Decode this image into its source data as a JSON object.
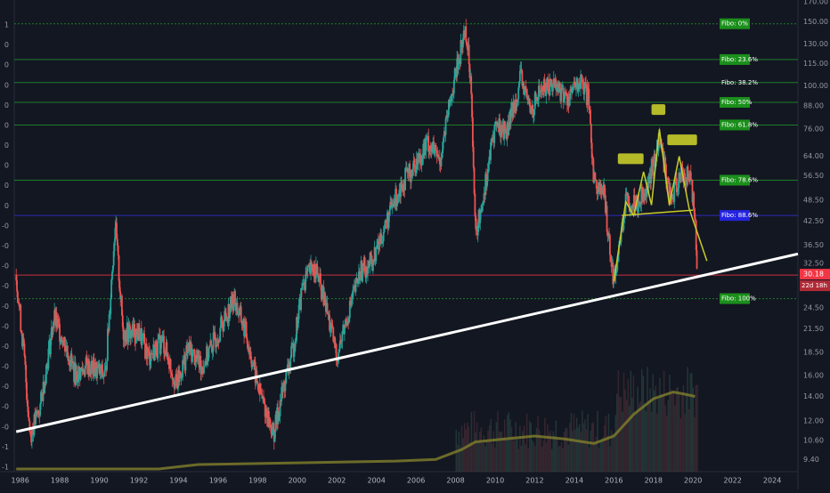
{
  "chart_data": {
    "type": "candlestick",
    "title": "",
    "x_axis": {
      "range": [
        1985.7,
        2025.3
      ],
      "ticks": [
        "1986",
        "1988",
        "1990",
        "1992",
        "1994",
        "1996",
        "1998",
        "2000",
        "2002",
        "2004",
        "2006",
        "2008",
        "2010",
        "2012",
        "2014",
        "2016",
        "2018",
        "2020",
        "2022",
        "2024"
      ]
    },
    "y_axis": {
      "scale": "log",
      "range": [
        8.7,
        172
      ],
      "ticks": [
        "170.00",
        "150.00",
        "130.00",
        "115.00",
        "100.00",
        "88.00",
        "76.00",
        "64.00",
        "56.50",
        "48.50",
        "42.50",
        "36.50",
        "32.50",
        "28.50",
        "24.50",
        "21.50",
        "18.50",
        "16.00",
        "14.00",
        "12.00",
        "10.60",
        "9.40"
      ]
    },
    "left_axis_ticks": [
      "1",
      "0",
      "0",
      "0",
      "0",
      "0",
      "0",
      "0",
      "0",
      "0",
      "-0",
      "-0",
      "-0",
      "-0",
      "-0",
      "-0",
      "-0",
      "-0",
      "-0",
      "-0",
      "-0",
      "-1",
      "-1"
    ],
    "colors": {
      "up": "#26a69a",
      "down": "#ef5350",
      "fib_line": "#2eaa3a",
      "fib_label_bg": "#1b8f1b",
      "fib_886_bg": "#2424e0",
      "pattern": "#c8cc2a",
      "trendline": "#ffffff",
      "current_price": "#f23645",
      "volume_ma": "#7b7a2a"
    },
    "fib_levels": [
      {
        "label": "Fibo:    0%",
        "price": 148,
        "style": "green"
      },
      {
        "label": "Fibo:  23.6%",
        "price": 118,
        "style": "green"
      },
      {
        "label": "Fibo:  38.2%",
        "price": 102,
        "style": "plain"
      },
      {
        "label": "Fibo:    50%",
        "price": 90,
        "style": "green"
      },
      {
        "label": "Fibo:  61.8%",
        "price": 78,
        "style": "green"
      },
      {
        "label": "Fibo:  78.6%",
        "price": 55,
        "style": "green"
      },
      {
        "label": "Fibo:  88.6%",
        "price": 44,
        "style": "blue"
      },
      {
        "label": "Fibo:  100%",
        "price": 26,
        "style": "green"
      }
    ],
    "price_anchors": [
      [
        1985.8,
        30
      ],
      [
        1986.2,
        18
      ],
      [
        1986.5,
        11
      ],
      [
        1987.0,
        13
      ],
      [
        1987.7,
        23
      ],
      [
        1988.2,
        20
      ],
      [
        1988.8,
        16
      ],
      [
        1989.4,
        17
      ],
      [
        1990.3,
        16
      ],
      [
        1990.8,
        42
      ],
      [
        1991.2,
        21
      ],
      [
        1992.0,
        21
      ],
      [
        1992.5,
        18
      ],
      [
        1993.2,
        20
      ],
      [
        1993.9,
        15
      ],
      [
        1994.5,
        19
      ],
      [
        1995.2,
        17
      ],
      [
        1996.0,
        21
      ],
      [
        1996.8,
        26
      ],
      [
        1997.4,
        21
      ],
      [
        1998.0,
        15
      ],
      [
        1998.8,
        11
      ],
      [
        1999.2,
        14
      ],
      [
        1999.8,
        19
      ],
      [
        2000.3,
        29
      ],
      [
        2000.9,
        32
      ],
      [
        2001.5,
        24
      ],
      [
        2002.0,
        18
      ],
      [
        2002.6,
        24
      ],
      [
        2003.2,
        31
      ],
      [
        2003.8,
        33
      ],
      [
        2004.5,
        42
      ],
      [
        2005.2,
        53
      ],
      [
        2005.9,
        60
      ],
      [
        2006.6,
        70
      ],
      [
        2007.2,
        62
      ],
      [
        2007.8,
        95
      ],
      [
        2008.5,
        145
      ],
      [
        2008.8,
        100
      ],
      [
        2009.0,
        38
      ],
      [
        2009.4,
        50
      ],
      [
        2010.0,
        78
      ],
      [
        2010.6,
        75
      ],
      [
        2011.3,
        105
      ],
      [
        2011.8,
        85
      ],
      [
        2012.3,
        98
      ],
      [
        2013.0,
        102
      ],
      [
        2013.6,
        92
      ],
      [
        2014.3,
        102
      ],
      [
        2014.7,
        92
      ],
      [
        2015.0,
        55
      ],
      [
        2015.5,
        50
      ],
      [
        2016.0,
        29
      ],
      [
        2016.6,
        48
      ],
      [
        2017.2,
        48
      ],
      [
        2017.8,
        55
      ],
      [
        2018.3,
        72
      ],
      [
        2018.9,
        48
      ],
      [
        2019.4,
        58
      ],
      [
        2019.9,
        55
      ],
      [
        2020.1,
        44
      ],
      [
        2020.2,
        30.2
      ]
    ],
    "volume_ma": [
      [
        1985.8,
        8.85
      ],
      [
        1993.0,
        8.85
      ],
      [
        1995.0,
        9.1
      ],
      [
        2000.0,
        9.2
      ],
      [
        2005.0,
        9.3
      ],
      [
        2007.0,
        9.4
      ],
      [
        2008.3,
        10.0
      ],
      [
        2009.0,
        10.5
      ],
      [
        2010.5,
        10.7
      ],
      [
        2012.0,
        10.9
      ],
      [
        2013.5,
        10.7
      ],
      [
        2015.0,
        10.4
      ],
      [
        2016.0,
        10.9
      ],
      [
        2017.0,
        12.5
      ],
      [
        2018.0,
        13.8
      ],
      [
        2019.0,
        14.4
      ],
      [
        2019.6,
        14.2
      ],
      [
        2020.1,
        14.0
      ]
    ],
    "current_price": {
      "value": 30.18,
      "label": "30.18",
      "countdown": "22d 18h"
    },
    "trendline": {
      "from": [
        1985.8,
        11.2
      ],
      "to": [
        2025.3,
        34.5
      ]
    },
    "pattern": {
      "zigzag": [
        [
          2016.0,
          29
        ],
        [
          2016.6,
          48
        ],
        [
          2017.0,
          44
        ],
        [
          2017.5,
          58
        ],
        [
          2017.9,
          47
        ],
        [
          2018.3,
          76
        ],
        [
          2018.8,
          47
        ],
        [
          2019.3,
          64
        ],
        [
          2019.8,
          46
        ],
        [
          2020.7,
          33
        ]
      ],
      "neckline": {
        "from": [
          2016.4,
          44
        ],
        "to": [
          2020.0,
          45.5
        ]
      },
      "boxes": [
        [
          2016.2,
          2017.5,
          63
        ],
        [
          2017.9,
          2018.6,
          86
        ],
        [
          2018.7,
          2020.2,
          71
        ]
      ]
    }
  }
}
